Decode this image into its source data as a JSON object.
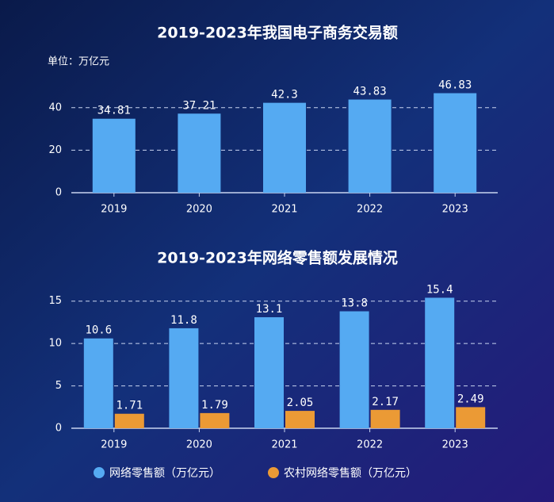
{
  "chart_data": [
    {
      "type": "bar",
      "title": "2019-2023年我国电子商务交易额",
      "unit": "单位：万亿元",
      "categories": [
        "2019",
        "2020",
        "2021",
        "2022",
        "2023"
      ],
      "series": [
        {
          "name": null,
          "color": "#55aaf2",
          "values": [
            34.81,
            37.21,
            42.3,
            43.83,
            46.83
          ]
        }
      ],
      "ylim": [
        0,
        50
      ],
      "yticks": [
        0,
        20,
        40
      ],
      "grid": true
    },
    {
      "type": "bar",
      "title": "2019-2023年网络零售额发展情况",
      "categories": [
        "2019",
        "2020",
        "2021",
        "2022",
        "2023"
      ],
      "series": [
        {
          "name": "网络零售额（万亿元）",
          "color": "#55aaf2",
          "values": [
            10.6,
            11.8,
            13.1,
            13.8,
            15.4
          ]
        },
        {
          "name": "农村网络零售额（万亿元）",
          "color": "#eb9a35",
          "values": [
            1.71,
            1.79,
            2.05,
            2.17,
            2.49
          ]
        }
      ],
      "ylim": [
        0,
        17.5
      ],
      "yticks": [
        0,
        5,
        10,
        15
      ],
      "grid": true,
      "legend": "bottom"
    }
  ]
}
